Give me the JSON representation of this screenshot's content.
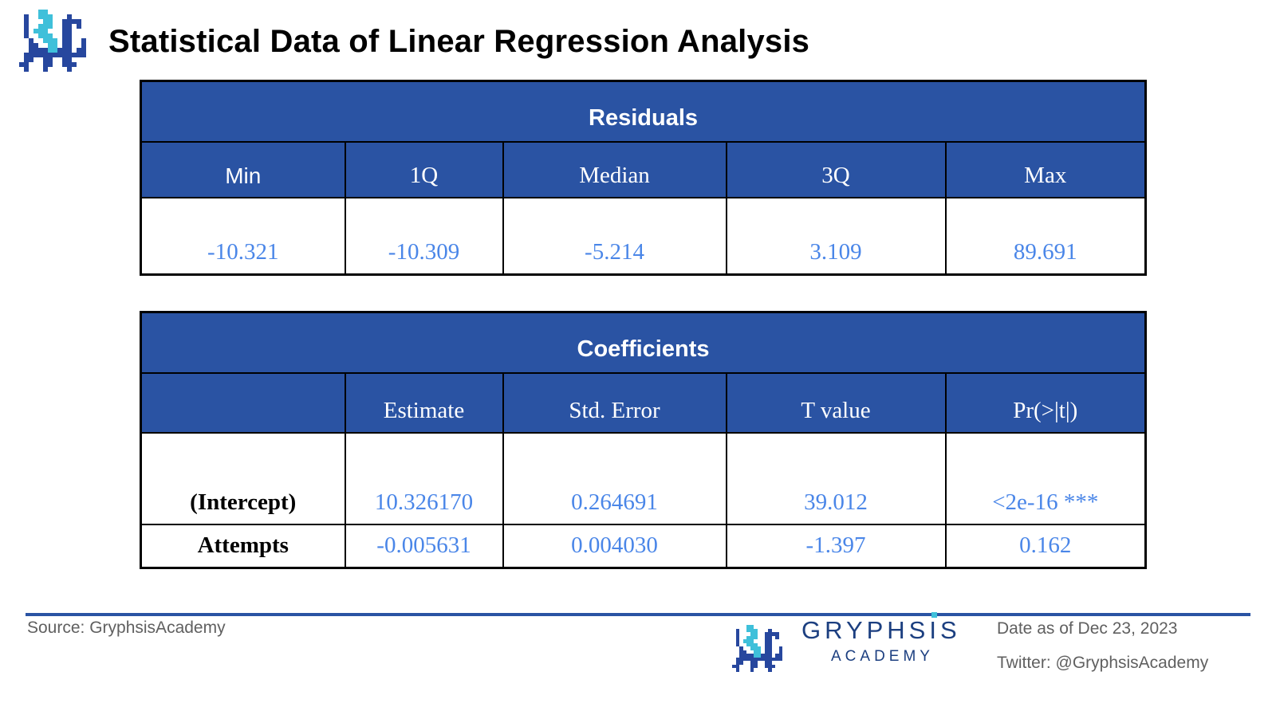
{
  "header": {
    "title": "Statistical Data of Linear Regression Analysis"
  },
  "colors": {
    "table_header_blue": "#2a53a3",
    "value_blue": "#4a86e8",
    "border_black": "#000000",
    "logo_navy": "#27479e",
    "logo_cyan": "#3fc0da",
    "wordmark_navy": "#1c3f80",
    "footer_text_gray": "#606060",
    "divider_blue": "#2a53a3"
  },
  "residuals_table": {
    "title": "Residuals",
    "columns": [
      "Min",
      "1Q",
      "Median",
      "3Q",
      "Max"
    ],
    "values": [
      "-10.321",
      "-10.309",
      "-5.214",
      "3.109",
      "89.691"
    ]
  },
  "coefficients_table": {
    "title": "Coefficients",
    "columns": [
      "",
      "Estimate",
      "Std. Error",
      "T value",
      "Pr(>|t|)"
    ],
    "rows": [
      {
        "label": "(Intercept)",
        "estimate": "10.326170",
        "std_error": "0.264691",
        "t_value": "39.012",
        "pr": "<2e-16 ***"
      },
      {
        "label": "Attempts",
        "estimate": "-0.005631",
        "std_error": "0.004030",
        "t_value": "-1.397",
        "pr": "0.162"
      }
    ]
  },
  "footer": {
    "source": "Source: GryphsisAcademy",
    "brand_name": "GRYPHSIS",
    "brand_sub": "ACADEMY",
    "date": "Date as of Dec 23, 2023",
    "twitter": "Twitter: @GryphsisAcademy"
  },
  "logo_pixart": {
    "navy": "#27479e",
    "cyan": "#3fc0da",
    "pixels": [
      "....CC........",
      ".B..CCC...B...",
      ".B...CC..BBBB.",
      ".B..CCC..BB.B.",
      ".B.CCC...BB...",
      ".B..CCC..BB...",
      "..B..CCC.BB..B",
      "..BB..CC.BB..B",
      "..BBBBCCBBB.BB",
      ".BBBBBBBBBBBBB",
      ".BB..BB..BB...",
      "BB...BB..BBB..",
      ".B...B....B..."
    ]
  },
  "chart_data": [
    {
      "type": "table",
      "title": "Residuals",
      "columns": [
        "Min",
        "1Q",
        "Median",
        "3Q",
        "Max"
      ],
      "rows": [
        [
          -10.321,
          -10.309,
          -5.214,
          3.109,
          89.691
        ]
      ]
    },
    {
      "type": "table",
      "title": "Coefficients",
      "columns": [
        "",
        "Estimate",
        "Std. Error",
        "T value",
        "Pr(>|t|)"
      ],
      "rows": [
        [
          "(Intercept)",
          10.32617,
          0.264691,
          39.012,
          "<2e-16 ***"
        ],
        [
          "Attempts",
          -0.005631,
          0.00403,
          -1.397,
          0.162
        ]
      ]
    }
  ]
}
